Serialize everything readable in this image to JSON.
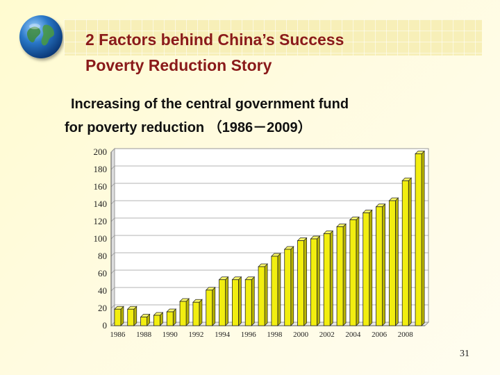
{
  "title": {
    "line1": "2  Factors behind China’s Success",
    "line2": "Poverty Reduction Story"
  },
  "subtitle": {
    "line1": "Increasing of the central government fund",
    "line2": "for poverty reduction （1986－2009）"
  },
  "page_number": "31",
  "colors": {
    "bar": "#f2ee10",
    "bar_outline": "#222222",
    "title_text": "#8a1a1a"
  },
  "chart_data": {
    "type": "bar",
    "categories": [
      "1986",
      "1987",
      "1988",
      "1989",
      "1990",
      "1991",
      "1992",
      "1993",
      "1994",
      "1995",
      "1996",
      "1997",
      "1998",
      "1999",
      "2000",
      "2001",
      "2002",
      "2003",
      "2004",
      "2005",
      "2006",
      "2007",
      "2008",
      "2009"
    ],
    "values": [
      19,
      19,
      10,
      12,
      16,
      28,
      27,
      41,
      53,
      53,
      53,
      68,
      80,
      88,
      98,
      100,
      106,
      114,
      122,
      130,
      137,
      144,
      167,
      198
    ],
    "x_tick_labels": [
      "1986",
      "1988",
      "1990",
      "1992",
      "1994",
      "1996",
      "1998",
      "2000",
      "2002",
      "2004",
      "2006",
      "2008"
    ],
    "y_ticks": [
      0,
      20,
      40,
      60,
      80,
      100,
      120,
      140,
      160,
      180,
      200
    ],
    "ylim": [
      0,
      200
    ],
    "grid": true,
    "legend": "none",
    "title": "",
    "xlabel": "",
    "ylabel": ""
  }
}
